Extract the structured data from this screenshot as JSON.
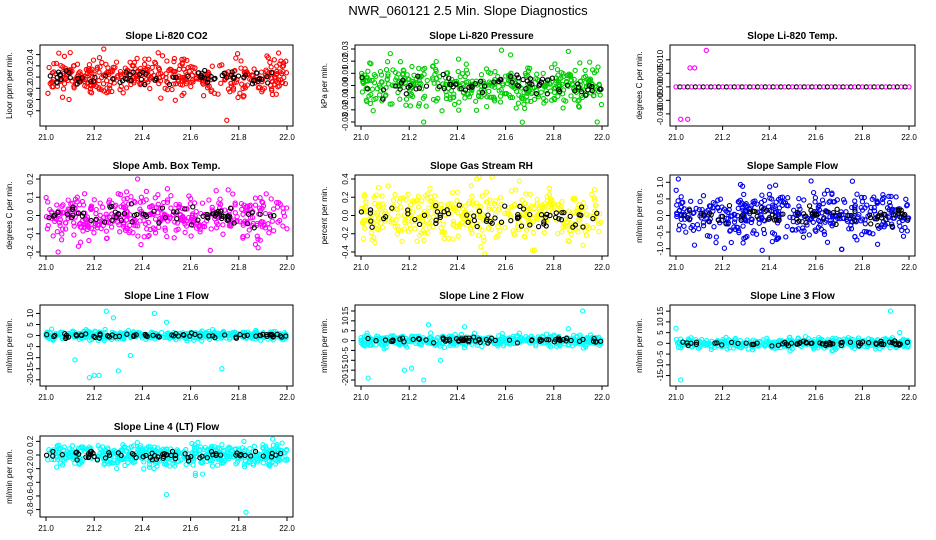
{
  "title": "NWR_060121  2.5 Min. Slope Diagnostics",
  "chart_data": [
    {
      "type": "scatter",
      "id": "p1",
      "title": "Slope Li-820 CO2",
      "ylabel": "Lioor ppm per min.",
      "color": "#ff0000",
      "xlim": [
        21.0,
        22.0
      ],
      "xticks": [
        "21.0",
        "21.2",
        "21.4",
        "21.6",
        "21.8",
        "22.0"
      ],
      "ylim": [
        -0.8,
        0.5
      ],
      "yticks": [
        "-0.6",
        "-0.4",
        "-0.2",
        "0.0",
        "0.2",
        "0.4"
      ],
      "n_main": 420,
      "n_black": 70,
      "spread": 0.16,
      "outliers": [
        [
          21.24,
          0.5
        ],
        [
          21.75,
          -0.77
        ]
      ]
    },
    {
      "type": "scatter",
      "id": "p2",
      "title": "Slope Li-820 Pressure",
      "ylabel": "kPa per min.",
      "color": "#00cc00",
      "xlim": [
        21.0,
        22.0
      ],
      "xticks": [
        "21.0",
        "21.2",
        "21.4",
        "21.6",
        "21.8",
        "22.0"
      ],
      "ylim": [
        -0.03,
        0.03
      ],
      "yticks": [
        "-0.03",
        "-0.02",
        "-0.01",
        "0.00",
        "0.01",
        "0.02",
        "0.03"
      ],
      "n_main": 420,
      "n_black": 70,
      "spread": 0.009,
      "outliers": [
        [
          21.86,
          0.028
        ],
        [
          21.26,
          -0.03
        ],
        [
          21.98,
          -0.03
        ]
      ]
    },
    {
      "type": "scatter",
      "id": "p3",
      "title": "Slope Li-820 Temp.",
      "ylabel": "degrees C per min.",
      "color": "#ff00ff",
      "xlim": [
        21.0,
        22.0
      ],
      "xticks": [
        "21.0",
        "21.2",
        "21.4",
        "21.6",
        "21.8",
        "22.0"
      ],
      "ylim": [
        -0.013,
        0.014
      ],
      "yticks": [
        "-0.010",
        "-0.005",
        "0.000",
        "0.005",
        "0.010"
      ],
      "n_main": 0,
      "n_black": 0,
      "spread": 0,
      "constant_line": true,
      "outliers": [
        [
          21.06,
          0.007
        ],
        [
          21.08,
          0.007
        ],
        [
          21.13,
          0.0135
        ],
        [
          21.02,
          -0.012
        ],
        [
          21.05,
          -0.012
        ]
      ]
    },
    {
      "type": "scatter",
      "id": "p4",
      "title": "Slope Amb. Box Temp.",
      "ylabel": "degrees C per min.",
      "color": "#ff00ff",
      "xlim": [
        21.0,
        22.0
      ],
      "xticks": [
        "21.0",
        "21.2",
        "21.4",
        "21.6",
        "21.8",
        "22.0"
      ],
      "ylim": [
        -0.2,
        0.2
      ],
      "yticks": [
        "-0.2",
        "-0.1",
        "0.0",
        "0.1",
        "0.2"
      ],
      "n_main": 420,
      "n_black": 70,
      "spread": 0.06,
      "outliers": [
        [
          21.38,
          0.2
        ],
        [
          21.05,
          -0.2
        ]
      ]
    },
    {
      "type": "scatter",
      "id": "p5",
      "title": "Slope Gas Stream RH",
      "ylabel": "percent per min.",
      "color": "#ffff00",
      "xlim": [
        21.0,
        22.0
      ],
      "xticks": [
        "21.0",
        "21.2",
        "21.4",
        "21.6",
        "21.8",
        "22.0"
      ],
      "ylim": [
        -0.4,
        0.4
      ],
      "yticks": [
        "-0.4",
        "-0.2",
        "0.0",
        "0.2",
        "0.4"
      ],
      "n_main": 420,
      "n_black": 70,
      "spread": 0.15,
      "outliers": [
        [
          21.48,
          0.4
        ],
        [
          21.72,
          -0.38
        ]
      ]
    },
    {
      "type": "scatter",
      "id": "p6",
      "title": "Slope Sample Flow",
      "ylabel": "ml/min per min.",
      "color": "#0000ee",
      "xlim": [
        21.0,
        22.0
      ],
      "xticks": [
        "21.0",
        "21.2",
        "21.4",
        "21.6",
        "21.8",
        "22.0"
      ],
      "ylim": [
        -1.1,
        1.1
      ],
      "yticks": [
        "-1.0",
        "-0.5",
        "0.0",
        "0.5",
        "1.0"
      ],
      "n_main": 420,
      "n_black": 70,
      "spread": 0.35,
      "outliers": [
        [
          21.01,
          1.1
        ],
        [
          21.37,
          -1.05
        ]
      ]
    },
    {
      "type": "scatter",
      "id": "p7",
      "title": "Slope Line 1 Flow",
      "ylabel": "ml/min per min.",
      "color": "#00ffff",
      "xlim": [
        21.0,
        22.0
      ],
      "xticks": [
        "21.0",
        "21.2",
        "21.4",
        "21.6",
        "21.8",
        "22.0"
      ],
      "ylim": [
        -21,
        12
      ],
      "yticks": [
        "-20",
        "-15",
        "-10",
        "-5",
        "0",
        "5",
        "10"
      ],
      "n_main": 440,
      "n_black": 70,
      "spread": 1.0,
      "outliers": [
        [
          21.18,
          -19
        ],
        [
          21.2,
          -18
        ],
        [
          21.22,
          -18
        ],
        [
          21.3,
          -16
        ],
        [
          21.25,
          11
        ],
        [
          21.28,
          8
        ],
        [
          21.45,
          10
        ],
        [
          21.5,
          6
        ],
        [
          21.73,
          -15
        ],
        [
          21.35,
          -9
        ],
        [
          21.12,
          -11
        ]
      ]
    },
    {
      "type": "scatter",
      "id": "p8",
      "title": "Slope Line 2 Flow",
      "ylabel": "ml/min per min.",
      "color": "#00ffff",
      "xlim": [
        21.0,
        22.0
      ],
      "xticks": [
        "21.0",
        "21.2",
        "21.4",
        "21.6",
        "21.8",
        "22.0"
      ],
      "ylim": [
        -21,
        16
      ],
      "yticks": [
        "-20",
        "-15",
        "-10",
        "-5",
        "0",
        "5",
        "10",
        "15"
      ],
      "n_main": 440,
      "n_black": 70,
      "spread": 1.4,
      "outliers": [
        [
          21.03,
          -19
        ],
        [
          21.18,
          -15
        ],
        [
          21.21,
          -14
        ],
        [
          21.26,
          -20
        ],
        [
          21.33,
          -10
        ],
        [
          21.28,
          8
        ],
        [
          21.43,
          7
        ],
        [
          21.92,
          15
        ],
        [
          21.86,
          6
        ]
      ]
    },
    {
      "type": "scatter",
      "id": "p9",
      "title": "Slope Line 3 Flow",
      "ylabel": "ml/min per min.",
      "color": "#00ffff",
      "xlim": [
        21.0,
        22.0
      ],
      "xticks": [
        "21.0",
        "21.2",
        "21.4",
        "21.6",
        "21.8",
        "22.0"
      ],
      "ylim": [
        -18,
        16
      ],
      "yticks": [
        "-15",
        "-10",
        "-5",
        "0",
        "5",
        "10",
        "15"
      ],
      "n_main": 440,
      "n_black": 70,
      "spread": 1.2,
      "outliers": [
        [
          21.02,
          -17
        ],
        [
          21.0,
          7
        ],
        [
          21.92,
          15
        ],
        [
          21.96,
          5
        ]
      ]
    },
    {
      "type": "scatter",
      "id": "p10",
      "title": "Slope Line 4 (LT) Flow",
      "ylabel": "ml/min per min.",
      "color": "#00ffff",
      "xlim": [
        21.0,
        22.0
      ],
      "xticks": [
        "21.0",
        "21.2",
        "21.4",
        "21.6",
        "21.8",
        "22.0"
      ],
      "ylim": [
        -0.85,
        0.22
      ],
      "yticks": [
        "-0.8",
        "-0.6",
        "-0.4",
        "-0.2",
        "0.0",
        "0.2"
      ],
      "n_main": 480,
      "n_black": 70,
      "spread": 0.08,
      "outliers": [
        [
          21.5,
          -0.58
        ],
        [
          21.83,
          -0.84
        ],
        [
          21.65,
          -0.28
        ],
        [
          21.62,
          -0.3
        ]
      ]
    }
  ]
}
